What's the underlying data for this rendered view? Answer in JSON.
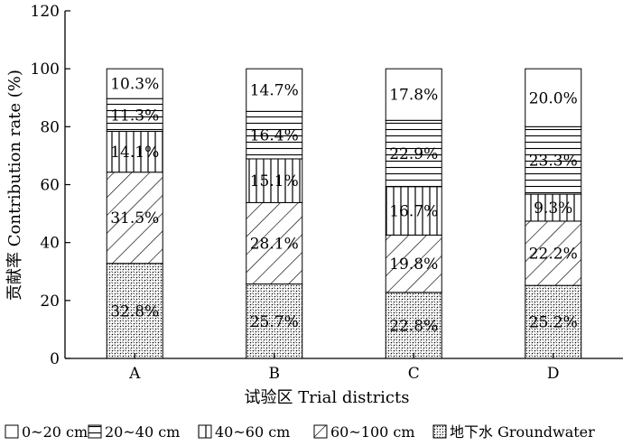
{
  "chart_data": {
    "type": "bar",
    "stacked": true,
    "categories": [
      "A",
      "B",
      "C",
      "D"
    ],
    "xlabel": "试验区 Trial districts",
    "ylabel": "贡献率 Contribution rate (%)",
    "ylim": [
      0,
      120
    ],
    "yticks": [
      "0",
      "20",
      "40",
      "60",
      "80",
      "100",
      "120"
    ],
    "grid": false,
    "legend_position": "bottom",
    "series": [
      {
        "name": "地下水 Groundwater",
        "pattern": "dots",
        "values": [
          32.8,
          25.7,
          22.8,
          25.2
        ],
        "labels": [
          "32.8%",
          "25.7%",
          "22.8%",
          "25.2%"
        ]
      },
      {
        "name": "60~100 cm",
        "pattern": "diagonal",
        "values": [
          31.5,
          28.1,
          19.8,
          22.2
        ],
        "labels": [
          "31.5%",
          "28.1%",
          "19.8%",
          "22.2%"
        ]
      },
      {
        "name": "40~60 cm",
        "pattern": "vertical",
        "values": [
          14.1,
          15.1,
          16.7,
          9.3
        ],
        "labels": [
          "14.1%",
          "15.1%",
          "16.7%",
          "9.3%"
        ]
      },
      {
        "name": "20~40 cm",
        "pattern": "horizontal",
        "values": [
          11.3,
          16.4,
          22.9,
          23.3
        ],
        "labels": [
          "11.3%",
          "16.4%",
          "22.9%",
          "23.3%"
        ]
      },
      {
        "name": "0~20 cm",
        "pattern": "blank",
        "values": [
          10.3,
          14.7,
          17.8,
          20.0
        ],
        "labels": [
          "10.3%",
          "14.7%",
          "17.8%",
          "20.0%"
        ]
      }
    ],
    "legend_order": [
      "0~20 cm",
      "20~40 cm",
      "40~60 cm",
      "60~100 cm",
      "地下水 Groundwater"
    ]
  }
}
